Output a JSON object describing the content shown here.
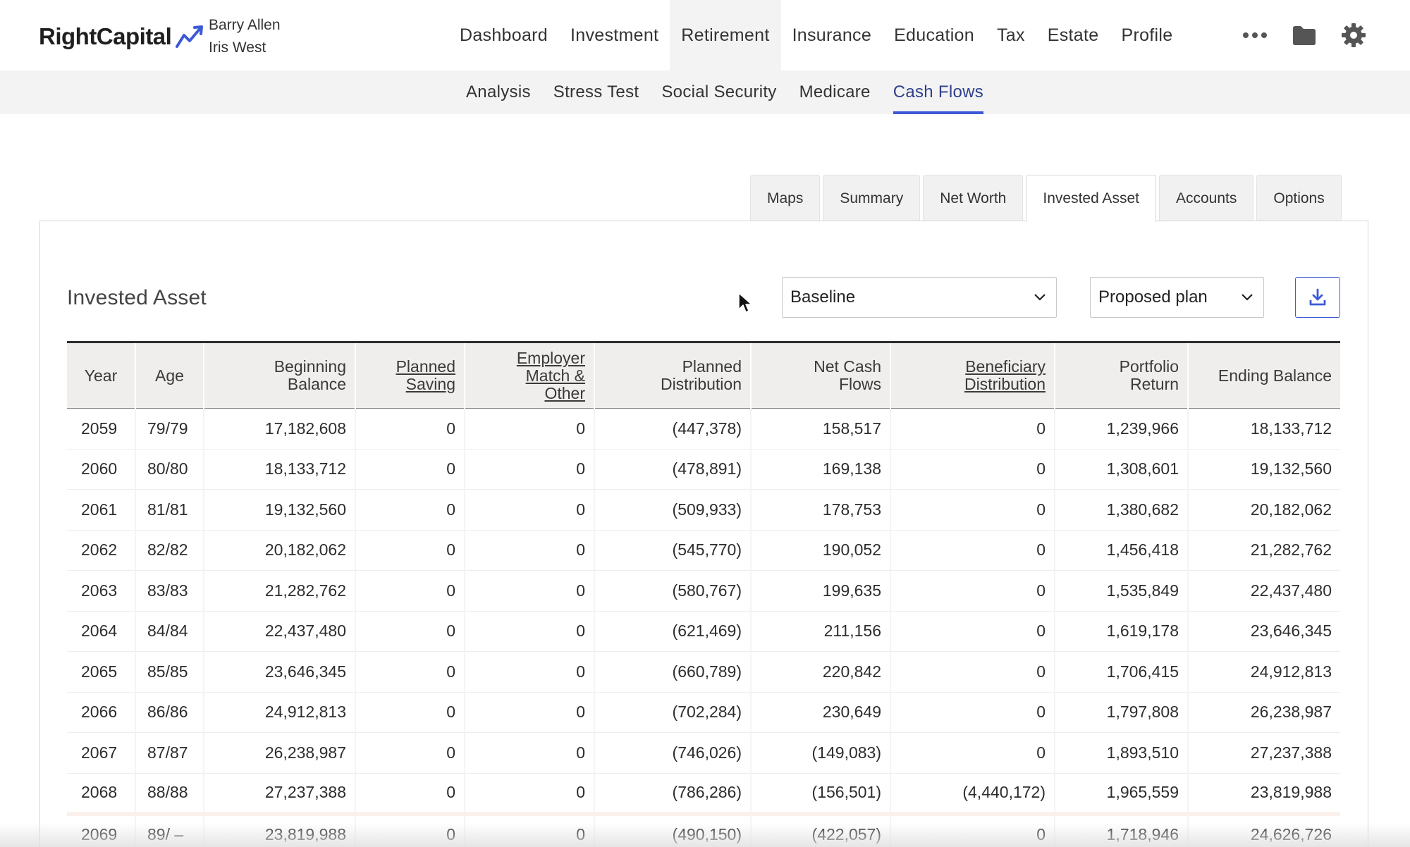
{
  "header": {
    "logo_text": "RightCapital",
    "client_names": [
      "Barry Allen",
      "Iris West"
    ],
    "nav": [
      "Dashboard",
      "Investment",
      "Retirement",
      "Insurance",
      "Education",
      "Tax",
      "Estate",
      "Profile"
    ],
    "active_nav": "Retirement",
    "icons": [
      "more-icon",
      "folder-icon",
      "gear-icon"
    ]
  },
  "subnav": {
    "items": [
      "Analysis",
      "Stress Test",
      "Social Security",
      "Medicare",
      "Cash Flows"
    ],
    "active": "Cash Flows"
  },
  "tabs": {
    "items": [
      "Maps",
      "Summary",
      "Net Worth",
      "Invested Asset",
      "Accounts",
      "Options"
    ],
    "active": "Invested Asset"
  },
  "panel": {
    "title": "Invested Asset",
    "scenario_select": "Baseline",
    "plan_select": "Proposed plan",
    "download_icon": "download-icon"
  },
  "table": {
    "headers": [
      {
        "lines": [
          "Year"
        ],
        "link": false
      },
      {
        "lines": [
          "Age"
        ],
        "link": false
      },
      {
        "lines": [
          "Beginning",
          "Balance"
        ],
        "link": false
      },
      {
        "lines": [
          "Planned",
          "Saving"
        ],
        "link": true
      },
      {
        "lines": [
          "Employer",
          "Match &",
          "Other"
        ],
        "link": true
      },
      {
        "lines": [
          "Planned",
          "Distribution"
        ],
        "link": false
      },
      {
        "lines": [
          "Net Cash",
          "Flows"
        ],
        "link": false
      },
      {
        "lines": [
          "Beneficiary",
          "Distribution"
        ],
        "link": true
      },
      {
        "lines": [
          "Portfolio",
          "Return"
        ],
        "link": false
      },
      {
        "lines": [
          "Ending Balance"
        ],
        "link": false
      }
    ],
    "rows": [
      [
        "2059",
        "79/79",
        "17,182,608",
        "0",
        "0",
        "(447,378)",
        "158,517",
        "0",
        "1,239,966",
        "18,133,712"
      ],
      [
        "2060",
        "80/80",
        "18,133,712",
        "0",
        "0",
        "(478,891)",
        "169,138",
        "0",
        "1,308,601",
        "19,132,560"
      ],
      [
        "2061",
        "81/81",
        "19,132,560",
        "0",
        "0",
        "(509,933)",
        "178,753",
        "0",
        "1,380,682",
        "20,182,062"
      ],
      [
        "2062",
        "82/82",
        "20,182,062",
        "0",
        "0",
        "(545,770)",
        "190,052",
        "0",
        "1,456,418",
        "21,282,762"
      ],
      [
        "2063",
        "83/83",
        "21,282,762",
        "0",
        "0",
        "(580,767)",
        "199,635",
        "0",
        "1,535,849",
        "22,437,480"
      ],
      [
        "2064",
        "84/84",
        "22,437,480",
        "0",
        "0",
        "(621,469)",
        "211,156",
        "0",
        "1,619,178",
        "23,646,345"
      ],
      [
        "2065",
        "85/85",
        "23,646,345",
        "0",
        "0",
        "(660,789)",
        "220,842",
        "0",
        "1,706,415",
        "24,912,813"
      ],
      [
        "2066",
        "86/86",
        "24,912,813",
        "0",
        "0",
        "(702,284)",
        "230,649",
        "0",
        "1,797,808",
        "26,238,987"
      ],
      [
        "2067",
        "87/87",
        "26,238,987",
        "0",
        "0",
        "(746,026)",
        "(149,083)",
        "0",
        "1,893,510",
        "27,237,388"
      ],
      [
        "2068",
        "88/88",
        "27,237,388",
        "0",
        "0",
        "(786,286)",
        "(156,501)",
        "(4,440,172)",
        "1,965,559",
        "23,819,988"
      ],
      [
        "2069",
        "89/ –",
        "23,819,988",
        "0",
        "0",
        "(490,150)",
        "(422,057)",
        "0",
        "1,718,946",
        "24,626,726"
      ]
    ],
    "highlight_row": "2068"
  },
  "colors": {
    "accent": "#3d5ad6",
    "active_subnav_text": "#2f3f8e",
    "header_bg": "#efeeec",
    "subnav_bg": "#f3f3f3"
  }
}
